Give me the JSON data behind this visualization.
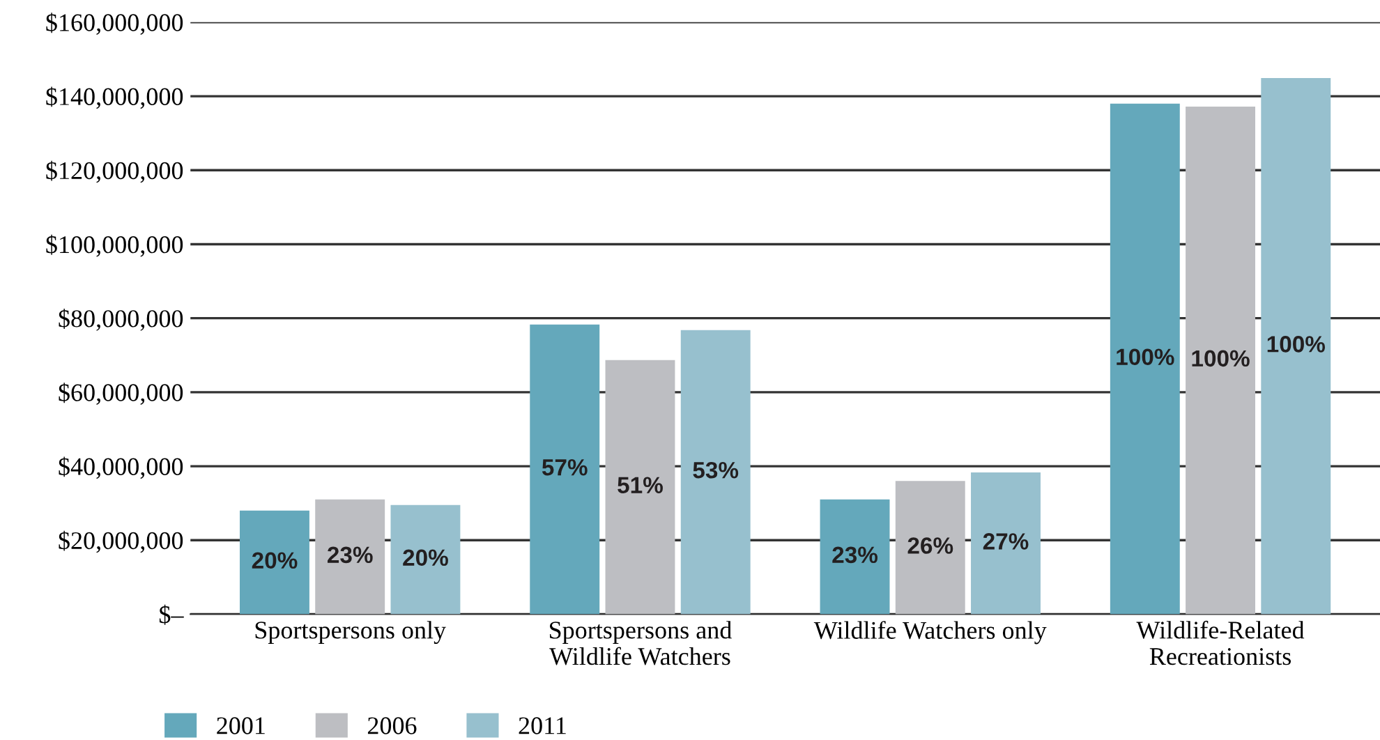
{
  "chart_data": {
    "type": "bar",
    "categories": [
      "Sportspersons only",
      "Sportspersons and\nWildlife Watchers",
      "Wildlife Watchers only",
      "Wildlife-Related\nRecreationists"
    ],
    "series": [
      {
        "name": "2001",
        "color": "#64a8bb",
        "values": [
          28000000,
          78300000,
          31000000,
          138000000
        ]
      },
      {
        "name": "2006",
        "color": "#bdbec2",
        "values": [
          31000000,
          68700000,
          36000000,
          137200000
        ]
      },
      {
        "name": "2011",
        "color": "#97c0ce",
        "values": [
          29500000,
          76800000,
          38300000,
          144900000
        ]
      }
    ],
    "annotations": [
      "20%",
      "57%",
      "23%",
      "100%",
      "23%",
      "51%",
      "26%",
      "100%",
      "20%",
      "53%",
      "27%",
      "100%"
    ],
    "ylim": [
      0,
      160000000
    ],
    "yticks": [
      {
        "value": 0,
        "label": "$–"
      },
      {
        "value": 20000000,
        "label": "$20,000,000"
      },
      {
        "value": 40000000,
        "label": "$40,000,000"
      },
      {
        "value": 60000000,
        "label": "$60,000,000"
      },
      {
        "value": 80000000,
        "label": "$80,000,000"
      },
      {
        "value": 100000000,
        "label": "$100,000,000"
      },
      {
        "value": 120000000,
        "label": "$120,000,000"
      },
      {
        "value": 140000000,
        "label": "$140,000,000"
      },
      {
        "value": 160000000,
        "label": "$160,000,000"
      }
    ],
    "grid": "y",
    "legend": "bottom left"
  }
}
